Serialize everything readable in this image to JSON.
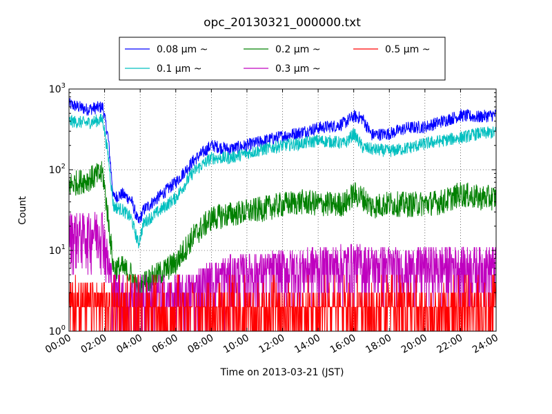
{
  "chart_data": {
    "type": "line",
    "title": "opc_20130321_000000.txt",
    "xlabel": "Time on 2013-03-21 (JST)",
    "ylabel": "Count",
    "x_range_hours": [
      0,
      24
    ],
    "x_ticks": [
      "00:00",
      "02:00",
      "04:00",
      "06:00",
      "08:00",
      "10:00",
      "12:00",
      "14:00",
      "16:00",
      "18:00",
      "20:00",
      "22:00",
      "24:00"
    ],
    "y_scale": "log",
    "ylim": [
      1,
      1000
    ],
    "y_ticks": [
      {
        "value": 1,
        "base": "10",
        "exp": "0"
      },
      {
        "value": 10,
        "base": "10",
        "exp": "1"
      },
      {
        "value": 100,
        "base": "10",
        "exp": "2"
      },
      {
        "value": 1000,
        "base": "10",
        "exp": "3"
      }
    ],
    "grid": true,
    "legend_placement": "top-center, above plot, 3 columns",
    "series": [
      {
        "name": "0.08 μm ~",
        "color": "#0000ff",
        "hours": [
          0,
          1,
          1.9,
          2.2,
          2.5,
          3,
          3.5,
          3.9,
          4.2,
          5,
          6,
          7,
          8,
          9,
          10,
          11,
          12,
          13,
          14,
          15,
          15.5,
          16,
          16.5,
          17,
          18,
          19,
          20,
          21,
          22,
          23,
          24
        ],
        "values": [
          650,
          560,
          600,
          250,
          45,
          50,
          42,
          22,
          32,
          45,
          70,
          130,
          200,
          180,
          200,
          230,
          260,
          290,
          330,
          350,
          380,
          460,
          430,
          270,
          280,
          330,
          340,
          400,
          470,
          450,
          480
        ]
      },
      {
        "name": "0.1 μm ~",
        "color": "#00bfbf",
        "hours": [
          0,
          1,
          1.9,
          2.2,
          2.5,
          3,
          3.5,
          3.9,
          4.2,
          5,
          6,
          7,
          8,
          9,
          10,
          11,
          12,
          13,
          14,
          15,
          15.5,
          16,
          16.5,
          17,
          18,
          19,
          20,
          21,
          22,
          23,
          24
        ],
        "values": [
          400,
          380,
          420,
          150,
          35,
          32,
          25,
          12,
          22,
          30,
          45,
          95,
          140,
          140,
          160,
          180,
          200,
          210,
          230,
          220,
          210,
          280,
          190,
          180,
          170,
          185,
          210,
          230,
          250,
          280,
          290
        ]
      },
      {
        "name": "0.2 μm ~",
        "color": "#008000",
        "hours": [
          0,
          1,
          1.9,
          2.2,
          2.5,
          3,
          3.5,
          3.9,
          4.2,
          5,
          6,
          7,
          8,
          9,
          10,
          11,
          12,
          13,
          14,
          15,
          15.5,
          16,
          16.5,
          17,
          18,
          19,
          20,
          21,
          22,
          23,
          24
        ],
        "values": [
          65,
          75,
          90,
          25,
          6,
          6,
          5,
          3,
          4,
          5,
          7,
          15,
          25,
          28,
          30,
          33,
          37,
          40,
          38,
          37,
          38,
          50,
          45,
          35,
          38,
          37,
          38,
          40,
          50,
          45,
          45
        ]
      },
      {
        "name": "0.3 μm ~",
        "color": "#bf00bf",
        "hours": [
          0,
          1,
          1.9,
          2.2,
          2.5,
          3,
          4,
          5,
          6,
          7,
          8,
          9,
          10,
          11,
          12,
          13,
          14,
          15,
          16,
          17,
          18,
          19,
          20,
          21,
          22,
          23,
          24
        ],
        "values": [
          16,
          15,
          18,
          6,
          3,
          2.5,
          2.5,
          2.5,
          2.5,
          3,
          4,
          4.5,
          5,
          5,
          5.5,
          5.5,
          6,
          6,
          6.5,
          6,
          6,
          5.5,
          6,
          6,
          6,
          6,
          6
        ]
      },
      {
        "name": "0.5 μm ~",
        "color": "#ff0000",
        "hours": [
          0,
          1,
          2,
          2.5,
          3,
          4,
          6,
          8,
          10,
          12,
          14,
          16,
          18,
          20,
          22,
          24
        ],
        "values": [
          2,
          2,
          2.2,
          1.5,
          1.5,
          1.5,
          1.5,
          1.5,
          1.5,
          1.6,
          1.6,
          1.6,
          1.6,
          1.6,
          1.6,
          1.6
        ]
      }
    ]
  }
}
